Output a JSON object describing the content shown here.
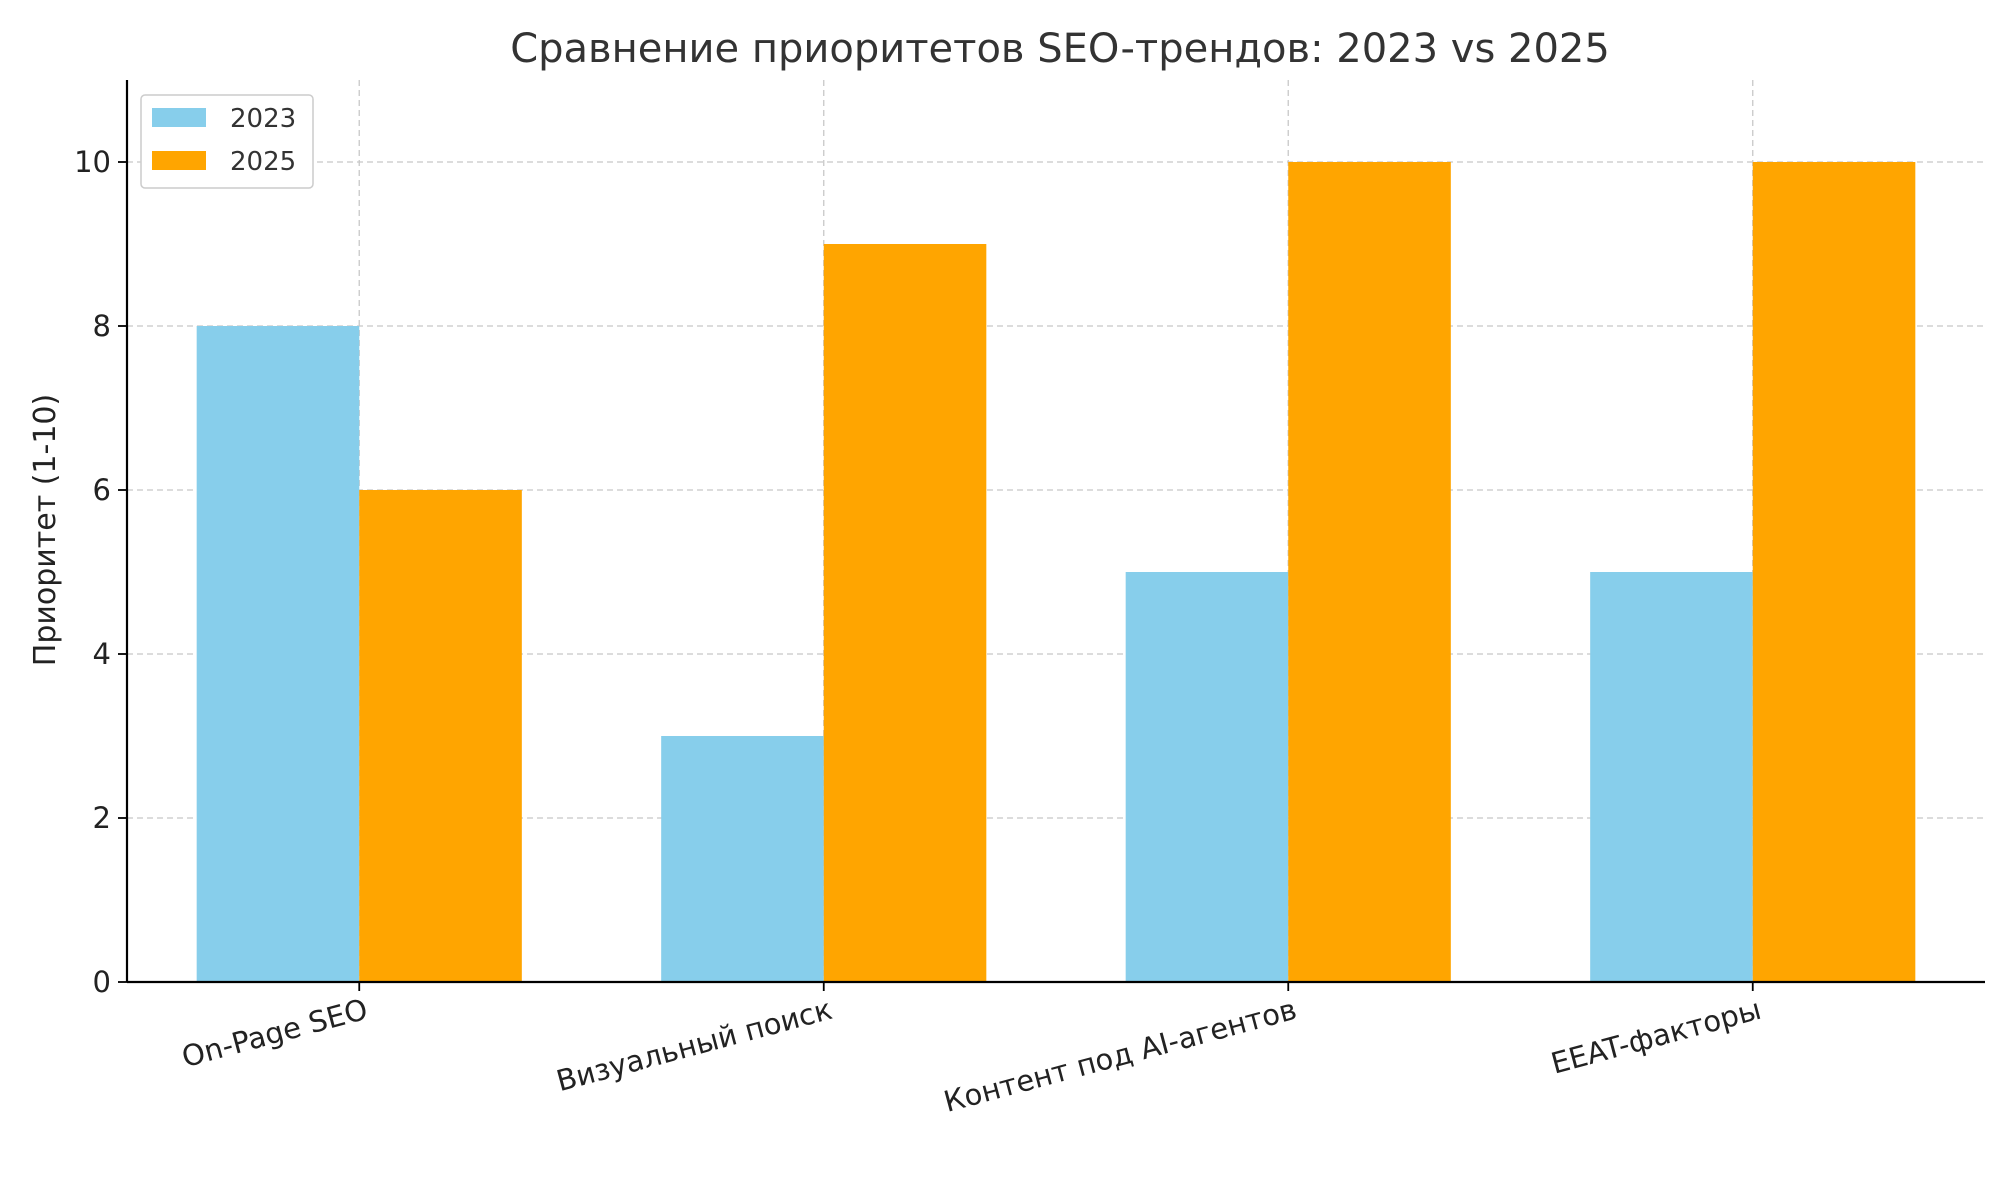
{
  "chart_data": {
    "type": "bar",
    "title": "Сравнение приоритетов SEO-трендов: 2023 vs 2025",
    "xlabel": "",
    "ylabel": "Приоритет (1-10)",
    "categories": [
      "On-Page SEO",
      "Визуальный поиск",
      "Контент под AI-агентов",
      "EEAT-факторы"
    ],
    "series": [
      {
        "name": "2023",
        "values": [
          8,
          3,
          5,
          5
        ],
        "color": "#87CEEB"
      },
      {
        "name": "2025",
        "values": [
          6,
          9,
          10,
          10
        ],
        "color": "#FFA500"
      }
    ],
    "ylim": [
      0,
      11
    ],
    "yticks": [
      0,
      2,
      4,
      6,
      8,
      10
    ],
    "grid": true,
    "legend_position": "top-left",
    "x_tick_rotation": -15
  }
}
